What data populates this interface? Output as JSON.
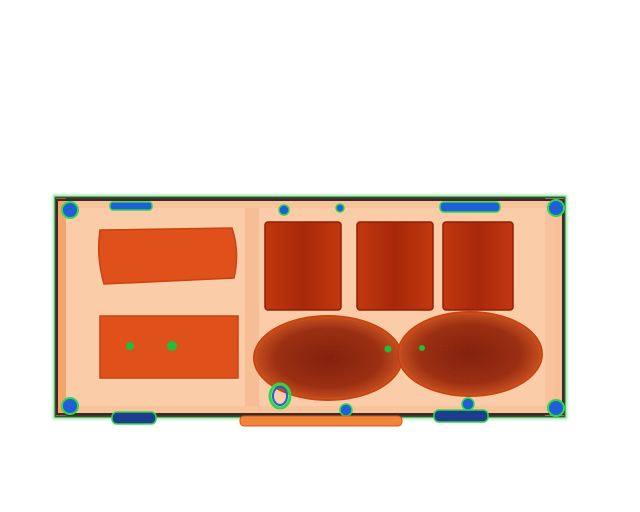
{
  "scene": {
    "subject": "xray-baggage-scan",
    "palette": {
      "background": "#ffffff",
      "case_fill": "#f8c49c",
      "case_inner": "#fbd3b0",
      "frame_dark": "#3a2a2a",
      "frame_green": "#2fd84a",
      "frame_blue": "#1f5fd8",
      "dense_orange": "#e0501a",
      "dense_red": "#b4300c",
      "organic_dark": "#8a1e08",
      "edge_tint": "#f0863c",
      "metal_green": "#1fbf3a"
    },
    "objects": [
      "upper-left-block",
      "lower-left-block",
      "canister-1",
      "canister-2",
      "canister-3",
      "round-mass-left",
      "round-mass-right",
      "handle-bottom"
    ]
  }
}
